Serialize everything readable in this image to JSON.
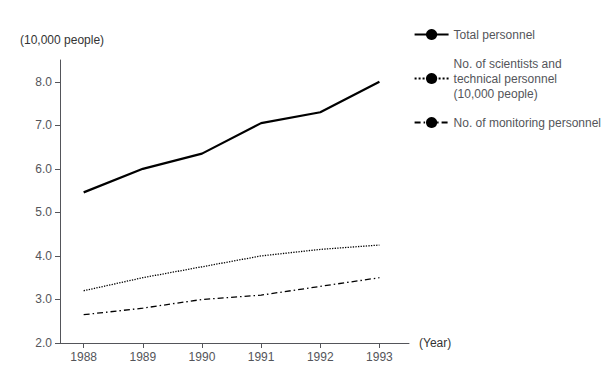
{
  "chart_data": {
    "type": "line",
    "x": [
      1988,
      1989,
      1990,
      1991,
      1992,
      1993
    ],
    "series": [
      {
        "name": "Total personnel",
        "color": "#000000",
        "line_style": "solid",
        "values": [
          5.46,
          6.0,
          6.35,
          7.05,
          7.3,
          8.0
        ]
      },
      {
        "name": "No. of scientists and\ntechnical personnel\n(10,000 people)",
        "color": "#000000",
        "line_style": "dotted",
        "values": [
          3.2,
          3.5,
          3.75,
          4.0,
          4.15,
          4.25
        ]
      },
      {
        "name": "No. of monitoring personnel",
        "color": "#000000",
        "line_style": "dashdot",
        "values": [
          2.65,
          2.8,
          3.0,
          3.1,
          3.3,
          3.5
        ]
      }
    ],
    "xlabel": "(Year)",
    "ylabel": "(10,000 people)",
    "xlim": [
      1987.6,
      1993.5
    ],
    "ylim": [
      2.0,
      8.5
    ],
    "xticks": [
      1988,
      1989,
      1990,
      1991,
      1992,
      1993
    ],
    "yticks": [
      {
        "value": 2.0,
        "label": "2.0"
      },
      {
        "value": 3.0,
        "label": "3.0"
      },
      {
        "value": 4.0,
        "label": "4.0"
      },
      {
        "value": 5.0,
        "label": "5.0"
      },
      {
        "value": 6.0,
        "label": "6.0"
      },
      {
        "value": 7.0,
        "label": "7.0"
      },
      {
        "value": 8.0,
        "label": "8.0"
      }
    ],
    "grid": false,
    "legend": "right"
  }
}
